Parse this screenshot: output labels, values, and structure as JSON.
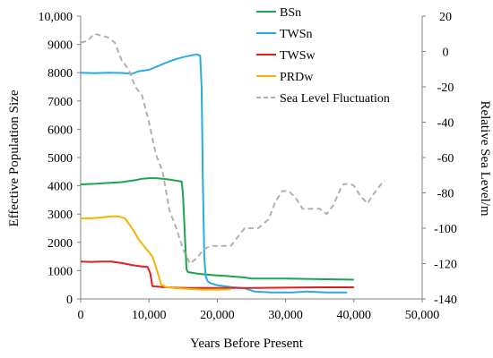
{
  "chart_data": {
    "type": "line",
    "title": "",
    "xlabel": "Years Before Present",
    "ylabel": "Effective Population Size",
    "y2label": "Relative Sea Level/m",
    "xlim": [
      0,
      50000
    ],
    "ylim": [
      0,
      10000
    ],
    "y2lim": [
      -140,
      20
    ],
    "xticks": [
      0,
      10000,
      20000,
      30000,
      40000,
      50000
    ],
    "xtick_labels": [
      "0",
      "10,000",
      "20,000",
      "30,000",
      "40,000",
      "50,000"
    ],
    "yticks": [
      0,
      1000,
      2000,
      3000,
      4000,
      5000,
      6000,
      7000,
      8000,
      9000,
      10000
    ],
    "ytick_labels": [
      "0",
      "1000",
      "2000",
      "3000",
      "4000",
      "5000",
      "6000",
      "7000",
      "8000",
      "9000",
      "10,000"
    ],
    "y2ticks": [
      20,
      0,
      -20,
      -40,
      -60,
      -80,
      -100,
      -120,
      -140
    ],
    "y2tick_labels": [
      "20",
      "0",
      "-20",
      "-40",
      "-60",
      "-80",
      "-100",
      "-120",
      "-140"
    ],
    "grid": false,
    "legend_position": "top-right",
    "series": [
      {
        "name": "BSn",
        "color": "#1aa64a",
        "axis": "left",
        "dashed": false,
        "points": [
          [
            0,
            4050
          ],
          [
            2000,
            4070
          ],
          [
            4000,
            4100
          ],
          [
            6000,
            4130
          ],
          [
            8000,
            4200
          ],
          [
            9000,
            4250
          ],
          [
            10000,
            4270
          ],
          [
            11000,
            4270
          ],
          [
            12000,
            4250
          ],
          [
            13000,
            4220
          ],
          [
            14000,
            4180
          ],
          [
            14800,
            4150
          ],
          [
            15000,
            3600
          ],
          [
            15300,
            2000
          ],
          [
            15500,
            1050
          ],
          [
            15700,
            950
          ],
          [
            17000,
            900
          ],
          [
            18000,
            870
          ],
          [
            20000,
            830
          ],
          [
            22000,
            800
          ],
          [
            24000,
            760
          ],
          [
            25000,
            720
          ],
          [
            30000,
            720
          ],
          [
            35000,
            700
          ],
          [
            38000,
            690
          ],
          [
            40000,
            680
          ]
        ]
      },
      {
        "name": "TWSn",
        "color": "#29abe2",
        "axis": "left",
        "dashed": false,
        "points": [
          [
            0,
            8000
          ],
          [
            2000,
            7980
          ],
          [
            4000,
            8000
          ],
          [
            6000,
            7990
          ],
          [
            7500,
            7960
          ],
          [
            8500,
            8050
          ],
          [
            10000,
            8100
          ],
          [
            11000,
            8200
          ],
          [
            12000,
            8300
          ],
          [
            13000,
            8400
          ],
          [
            14000,
            8480
          ],
          [
            15000,
            8550
          ],
          [
            16000,
            8600
          ],
          [
            17000,
            8650
          ],
          [
            17500,
            8600
          ],
          [
            17700,
            7500
          ],
          [
            17900,
            4000
          ],
          [
            18100,
            1500
          ],
          [
            18300,
            800
          ],
          [
            18600,
            620
          ],
          [
            19000,
            560
          ],
          [
            20000,
            480
          ],
          [
            22000,
            420
          ],
          [
            24000,
            380
          ],
          [
            25500,
            260
          ],
          [
            28000,
            230
          ],
          [
            31000,
            230
          ],
          [
            33000,
            260
          ],
          [
            36000,
            230
          ],
          [
            39000,
            230
          ]
        ]
      },
      {
        "name": "TWSw",
        "color": "#e02020",
        "axis": "left",
        "dashed": false,
        "points": [
          [
            0,
            1320
          ],
          [
            1500,
            1310
          ],
          [
            3000,
            1320
          ],
          [
            4500,
            1320
          ],
          [
            6000,
            1270
          ],
          [
            7500,
            1200
          ],
          [
            9000,
            1150
          ],
          [
            9800,
            1130
          ],
          [
            10200,
            900
          ],
          [
            10500,
            450
          ],
          [
            12000,
            420
          ],
          [
            14000,
            400
          ],
          [
            16000,
            390
          ],
          [
            18000,
            390
          ],
          [
            20000,
            390
          ],
          [
            25000,
            390
          ],
          [
            30000,
            400
          ],
          [
            35000,
            410
          ],
          [
            40000,
            410
          ]
        ]
      },
      {
        "name": "PRDw",
        "color": "#f5b400",
        "axis": "left",
        "dashed": false,
        "points": [
          [
            0,
            2850
          ],
          [
            1500,
            2850
          ],
          [
            3000,
            2880
          ],
          [
            4500,
            2920
          ],
          [
            5500,
            2920
          ],
          [
            6500,
            2850
          ],
          [
            7200,
            2600
          ],
          [
            7800,
            2400
          ],
          [
            8500,
            2100
          ],
          [
            9500,
            1800
          ],
          [
            10500,
            1500
          ],
          [
            11200,
            1000
          ],
          [
            11800,
            500
          ],
          [
            12500,
            420
          ],
          [
            14000,
            380
          ],
          [
            16000,
            350
          ],
          [
            18000,
            330
          ],
          [
            20000,
            330
          ],
          [
            22000,
            340
          ]
        ]
      },
      {
        "name": "Sea Level Fluctuation",
        "color": "#b0b0b0",
        "axis": "right",
        "dashed": true,
        "points": [
          [
            0,
            5
          ],
          [
            1000,
            6
          ],
          [
            2000,
            10
          ],
          [
            3000,
            9
          ],
          [
            4000,
            8
          ],
          [
            5000,
            5
          ],
          [
            6000,
            -5
          ],
          [
            7000,
            -10
          ],
          [
            8000,
            -20
          ],
          [
            9000,
            -25
          ],
          [
            10000,
            -40
          ],
          [
            11000,
            -58
          ],
          [
            12000,
            -68
          ],
          [
            13000,
            -90
          ],
          [
            14000,
            -100
          ],
          [
            15000,
            -112
          ],
          [
            16000,
            -120
          ],
          [
            17000,
            -117
          ],
          [
            18000,
            -112
          ],
          [
            19000,
            -110
          ],
          [
            20000,
            -110
          ],
          [
            22000,
            -110
          ],
          [
            24000,
            -100
          ],
          [
            26000,
            -100
          ],
          [
            27500,
            -95
          ],
          [
            28500,
            -85
          ],
          [
            29500,
            -79
          ],
          [
            30500,
            -79
          ],
          [
            31500,
            -83
          ],
          [
            32500,
            -89
          ],
          [
            34000,
            -89
          ],
          [
            35000,
            -89
          ],
          [
            36000,
            -92
          ],
          [
            37000,
            -87
          ],
          [
            38000,
            -78
          ],
          [
            38500,
            -75
          ],
          [
            39500,
            -75
          ],
          [
            40000,
            -76
          ],
          [
            41000,
            -82
          ],
          [
            42000,
            -86
          ],
          [
            43000,
            -80
          ],
          [
            44000,
            -75
          ],
          [
            44500,
            -73
          ]
        ]
      }
    ]
  }
}
